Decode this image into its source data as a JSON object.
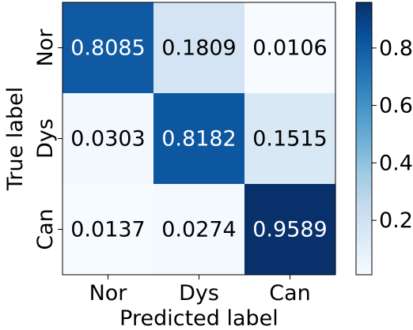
{
  "chart_data": {
    "type": "heatmap",
    "title": "",
    "xlabel": "Predicted label",
    "ylabel": "True label",
    "x_categories": [
      "Nor",
      "Dys",
      "Can"
    ],
    "y_categories": [
      "Nor",
      "Dys",
      "Can"
    ],
    "values": [
      [
        0.8085,
        0.1809,
        0.0106
      ],
      [
        0.0303,
        0.8182,
        0.1515
      ],
      [
        0.0137,
        0.0274,
        0.9589
      ]
    ],
    "cell_labels": [
      [
        "0.8085",
        "0.1809",
        "0.0106"
      ],
      [
        "0.0303",
        "0.8182",
        "0.1515"
      ],
      [
        "0.0137",
        "0.0274",
        "0.9589"
      ]
    ],
    "colormap": "Blues",
    "color_range": [
      0.0106,
      0.9589
    ],
    "colorbar_ticks": [
      0.2,
      0.4,
      0.6,
      0.8
    ],
    "colorbar_tick_labels": [
      "0.2",
      "0.4",
      "0.6",
      "0.8"
    ],
    "colorbar_position": "right"
  }
}
